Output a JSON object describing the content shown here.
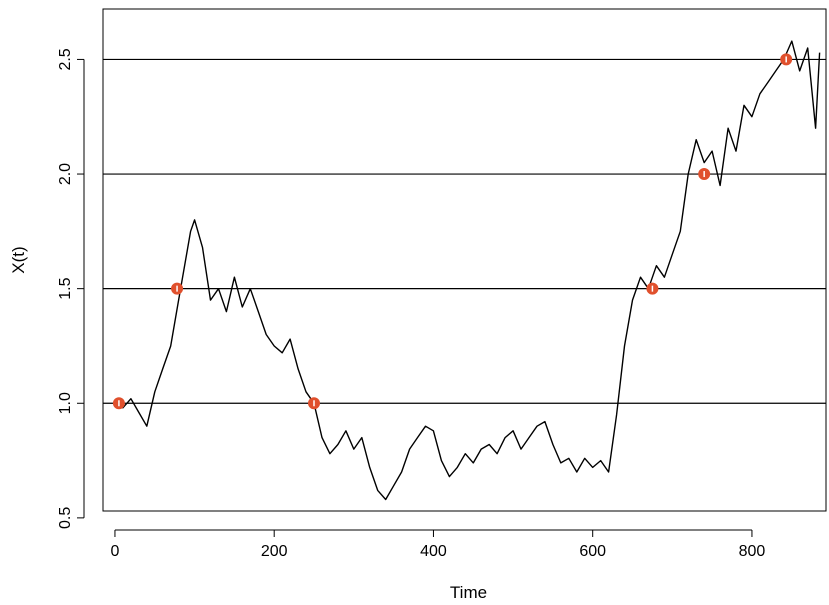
{
  "chart_data": {
    "type": "line",
    "title": "",
    "xlabel": "Time",
    "ylabel": "X(t)",
    "xlim": [
      -15,
      893
    ],
    "ylim": [
      0.53,
      2.72
    ],
    "x_ticks": [
      0,
      200,
      400,
      600,
      800
    ],
    "x_tick_labels": [
      "0",
      "200",
      "400",
      "600",
      "800"
    ],
    "y_ticks": [
      0.5,
      1.0,
      1.5,
      2.0,
      2.5
    ],
    "y_tick_labels": [
      "0.5",
      "1.0",
      "1.5",
      "2.0",
      "2.5"
    ],
    "reference_lines": [
      1.0,
      1.5,
      2.0,
      2.5
    ],
    "series": [
      {
        "x": [
          0,
          10,
          20,
          30,
          40,
          50,
          60,
          70,
          80,
          90,
          95,
          100,
          110,
          120,
          130,
          140,
          150,
          160,
          170,
          180,
          190,
          200,
          210,
          220,
          230,
          240,
          250,
          260,
          270,
          280,
          290,
          300,
          310,
          320,
          330,
          340,
          350,
          360,
          370,
          380,
          390,
          400,
          410,
          420,
          430,
          440,
          450,
          460,
          470,
          480,
          490,
          500,
          510,
          520,
          530,
          540,
          550,
          560,
          570,
          580,
          590,
          600,
          610,
          620,
          630,
          640,
          650,
          660,
          670,
          680,
          690,
          700,
          710,
          720,
          730,
          740,
          750,
          760,
          770,
          780,
          790,
          800,
          810,
          820,
          830,
          840,
          850,
          860,
          870,
          880,
          885
        ],
        "y": [
          1.0,
          0.98,
          1.02,
          0.96,
          0.9,
          1.05,
          1.15,
          1.25,
          1.45,
          1.65,
          1.75,
          1.8,
          1.68,
          1.45,
          1.5,
          1.4,
          1.55,
          1.42,
          1.5,
          1.4,
          1.3,
          1.25,
          1.22,
          1.28,
          1.15,
          1.05,
          1.0,
          0.85,
          0.78,
          0.82,
          0.88,
          0.8,
          0.85,
          0.72,
          0.62,
          0.58,
          0.64,
          0.7,
          0.8,
          0.85,
          0.9,
          0.88,
          0.75,
          0.68,
          0.72,
          0.78,
          0.74,
          0.8,
          0.82,
          0.78,
          0.85,
          0.88,
          0.8,
          0.85,
          0.9,
          0.92,
          0.82,
          0.74,
          0.76,
          0.7,
          0.76,
          0.72,
          0.75,
          0.7,
          0.95,
          1.25,
          1.45,
          1.55,
          1.5,
          1.6,
          1.55,
          1.65,
          1.75,
          2.0,
          2.15,
          2.05,
          2.1,
          1.95,
          2.2,
          2.1,
          2.3,
          2.25,
          2.35,
          2.4,
          2.45,
          2.5,
          2.58,
          2.45,
          2.55,
          2.2,
          2.53
        ]
      }
    ],
    "markers": [
      {
        "x": 5,
        "y": 1.0
      },
      {
        "x": 78,
        "y": 1.5
      },
      {
        "x": 250,
        "y": 1.0
      },
      {
        "x": 675,
        "y": 1.5
      },
      {
        "x": 740,
        "y": 2.0
      },
      {
        "x": 843,
        "y": 2.5
      }
    ],
    "line_color": "#000000",
    "marker_color": "#e0502d",
    "grid": false,
    "legend": "none"
  }
}
